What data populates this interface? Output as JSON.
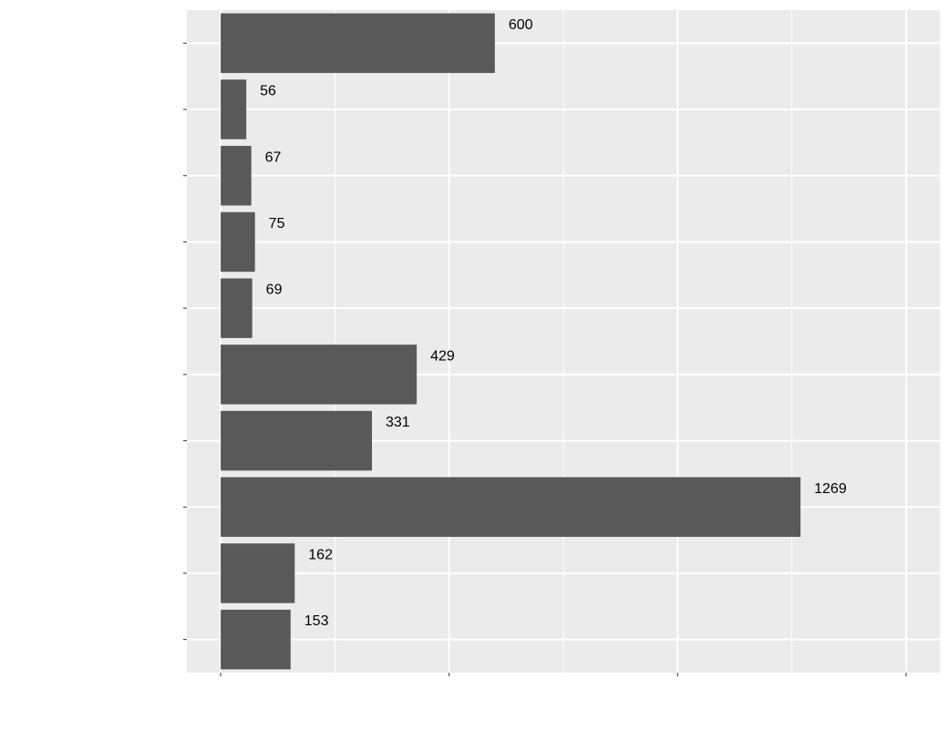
{
  "chart_data": {
    "type": "bar",
    "orientation": "horizontal",
    "categories": [
      null,
      null,
      null,
      null,
      null,
      null,
      null,
      null,
      null,
      null
    ],
    "values": [
      600,
      56,
      67,
      75,
      69,
      429,
      331,
      1269,
      162,
      153
    ],
    "color": "#595959",
    "xlim": [
      -74,
      1574
    ],
    "xticks": [
      0,
      500,
      1000,
      1500
    ],
    "grid": true
  }
}
